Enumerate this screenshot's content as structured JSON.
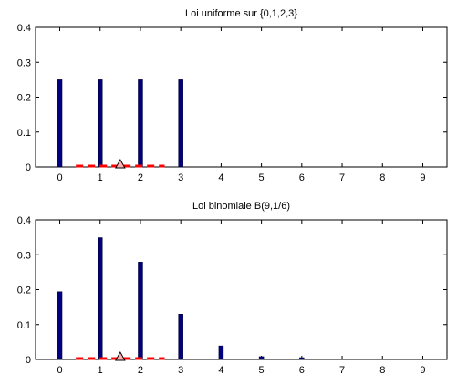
{
  "chart_data": [
    {
      "type": "bar",
      "title": "Loi uniforme sur {0,1,2,3}",
      "xlabel": "",
      "ylabel": "",
      "x": [
        0,
        1,
        2,
        3,
        4,
        5,
        6,
        7,
        8,
        9
      ],
      "values": [
        0.25,
        0.25,
        0.25,
        0.25,
        0,
        0,
        0,
        0,
        0,
        0
      ],
      "xlim": [
        -0.6,
        9.6
      ],
      "ylim": [
        0,
        0.4
      ],
      "xticks": [
        "0",
        "1",
        "2",
        "3",
        "4",
        "5",
        "6",
        "7",
        "8",
        "9"
      ],
      "yticks": [
        "0",
        "0.1",
        "0.2",
        "0.3",
        "0.4"
      ],
      "bar_color": "#000080",
      "interval": {
        "from": 0.4,
        "to": 2.6,
        "color": "#ff0000",
        "style": "dashed"
      },
      "marker": {
        "x": 1.5,
        "y": 0,
        "shape": "triangle",
        "fill": "#ffb3b3"
      },
      "grid": false
    },
    {
      "type": "bar",
      "title": "Loi binomiale B(9,1/6)",
      "xlabel": "",
      "ylabel": "",
      "x": [
        0,
        1,
        2,
        3,
        4,
        5,
        6,
        7,
        8,
        9
      ],
      "values": [
        0.194,
        0.349,
        0.279,
        0.13,
        0.039,
        0.008,
        0.001,
        0,
        0,
        0
      ],
      "xlim": [
        -0.6,
        9.6
      ],
      "ylim": [
        0,
        0.4
      ],
      "xticks": [
        "0",
        "1",
        "2",
        "3",
        "4",
        "5",
        "6",
        "7",
        "8",
        "9"
      ],
      "yticks": [
        "0",
        "0.1",
        "0.2",
        "0.3",
        "0.4"
      ],
      "bar_color": "#000080",
      "interval": {
        "from": 0.4,
        "to": 2.6,
        "color": "#ff0000",
        "style": "dashed"
      },
      "marker": {
        "x": 1.5,
        "y": 0,
        "shape": "triangle",
        "fill": "#ffb3b3"
      },
      "grid": false
    }
  ]
}
